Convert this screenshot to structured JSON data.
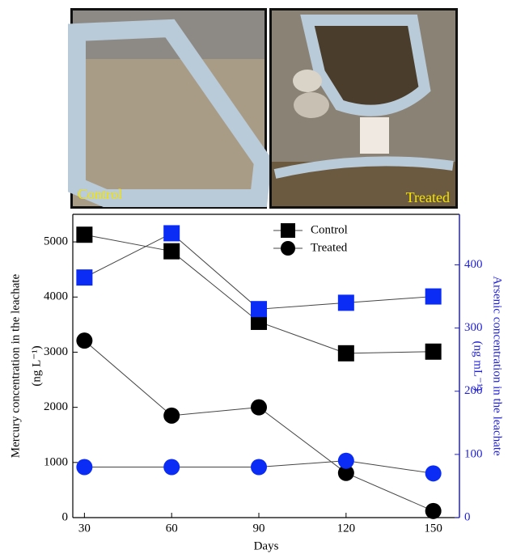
{
  "photos": [
    {
      "label": "Control"
    },
    {
      "label": "Treated"
    }
  ],
  "chart_data": {
    "type": "line",
    "xlabel": "Days",
    "ylabel": [
      "Mercury concentration in the leachate",
      "(ng L⁻¹)"
    ],
    "y2label": [
      "Arsenic concentration in the leachate",
      "(ng mL⁻¹)"
    ],
    "y2color": "#1f1fd6",
    "x": [
      30,
      60,
      90,
      120,
      150
    ],
    "xlim": [
      26,
      159
    ],
    "xticks": [
      30,
      60,
      90,
      120,
      150
    ],
    "ylim": [
      0,
      5500
    ],
    "yticks": [
      0,
      1000,
      2000,
      3000,
      4000,
      5000
    ],
    "y2lim": [
      0,
      480
    ],
    "y2ticks": [
      0,
      100,
      200,
      300,
      400
    ],
    "legend": "upper center",
    "series": [
      {
        "name": "Control",
        "color": "#000000",
        "marker": "square",
        "values": [
          5130,
          4830,
          3550,
          2980,
          3010
        ]
      },
      {
        "name": "Treated",
        "color": "#000000",
        "marker": "circle",
        "values": [
          3210,
          1850,
          2000,
          810,
          120
        ]
      },
      {
        "color": "#0a2cf5",
        "marker": "square",
        "axis": "y2",
        "values": [
          380,
          450,
          330,
          340,
          350
        ]
      },
      {
        "color": "#0a2cf5",
        "marker": "circle",
        "axis": "y2",
        "values": [
          80,
          80,
          80,
          90,
          70
        ]
      }
    ]
  }
}
